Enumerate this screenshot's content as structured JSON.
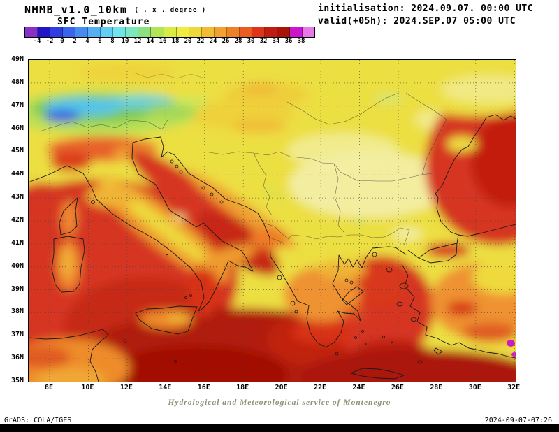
{
  "header": {
    "model": "NMMB_v1.0_10km",
    "resolution_note": "( . x . degree )",
    "field": "SFC Temperature",
    "initialisation": "initialisation: 2024.09.07. 00:00 UTC",
    "valid": "valid(+05h): 2024.SEP.07 05:00 UTC"
  },
  "colorbar": {
    "labels": [
      "-4",
      "-2",
      "0",
      "2",
      "4",
      "6",
      "8",
      "10",
      "12",
      "14",
      "16",
      "18",
      "20",
      "22",
      "24",
      "26",
      "28",
      "30",
      "32",
      "34",
      "36",
      "38"
    ],
    "colors": [
      "#8a2fc8",
      "#2214c8",
      "#2e3ee0",
      "#3a64ec",
      "#468cf0",
      "#54b0f2",
      "#62cef4",
      "#70e4ec",
      "#7ce8c0",
      "#8ce080",
      "#b2e455",
      "#d8ec48",
      "#f0ec40",
      "#f0d838",
      "#f2bc34",
      "#f2a030",
      "#f08028",
      "#ec5c22",
      "#e03418",
      "#c01c10",
      "#a81408",
      "#cc14cc",
      "#e878e8"
    ]
  },
  "map": {
    "lat_labels": [
      "49N",
      "48N",
      "47N",
      "46N",
      "45N",
      "44N",
      "43N",
      "42N",
      "41N",
      "40N",
      "39N",
      "38N",
      "37N",
      "36N",
      "35N"
    ],
    "lon_labels": [
      "8E",
      "10E",
      "12E",
      "14E",
      "16E",
      "18E",
      "20E",
      "22E",
      "24E",
      "26E",
      "28E",
      "30E",
      "32E"
    ],
    "field_colors": {
      "land_warm": "#ecdf42",
      "land_hot": "#ef9c2e",
      "sea": "#d63420",
      "sea_hot": "#b01a0e",
      "cold_alps": "#3b62dc",
      "extreme": "#cc10cc"
    }
  },
  "footer": {
    "service": "Hydrological and Meteorological service of Montenegro",
    "grads": "GrADS: COLA/IGES",
    "timestamp": "2024-09-07-07:26"
  }
}
